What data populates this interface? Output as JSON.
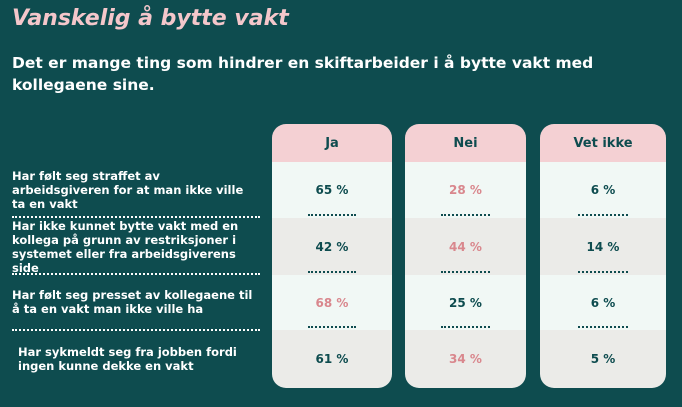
{
  "header": {
    "title": "Vanskelig å bytte vakt",
    "subtitle": "Det er mange ting som hindrer en skiftarbeider i å bytte vakt med kollegaene sine."
  },
  "table": {
    "columns": [
      "Ja",
      "Nei",
      "Vet ikke"
    ],
    "rows": [
      {
        "label": "Har følt seg straffet av arbeidsgiveren for at man ikke ville ta en vakt",
        "cells": [
          "65 %",
          "28 %",
          "6 %"
        ]
      },
      {
        "label": "Har ikke kunnet bytte vakt med en kollega på grunn av restriksjoner i systemet eller fra arbeidsgiverens side",
        "cells": [
          "42 %",
          "44 %",
          "14 %"
        ]
      },
      {
        "label": "Har følt seg presset av kollegaene til å ta en vakt man ikke ville ha",
        "cells": [
          "68 %",
          "25 %",
          "6 %"
        ]
      },
      {
        "label": "Har sykmeldt seg fra jobben fordi ingen kunne dekke en vakt",
        "cells": [
          "61 %",
          "34 %",
          "5 %"
        ]
      }
    ]
  }
}
